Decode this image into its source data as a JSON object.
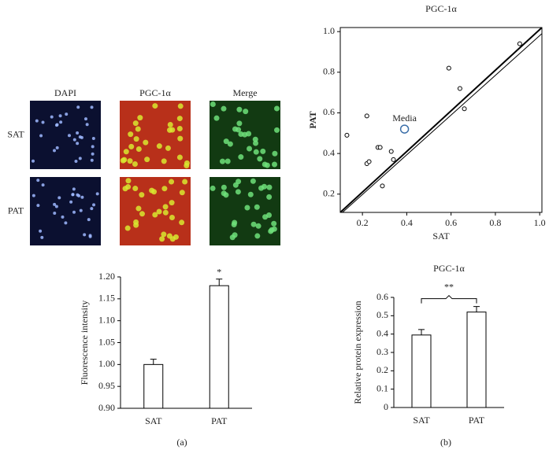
{
  "micrograph": {
    "columns": [
      "DAPI",
      "PGC-1α",
      "Merge"
    ],
    "rows": [
      "SAT",
      "PAT"
    ]
  },
  "panels": [
    "(a)",
    "(b)"
  ],
  "chart_data": [
    {
      "type": "bar",
      "y_label": "Fluorescence intensity",
      "categories": [
        "SAT",
        "PAT"
      ],
      "values": [
        1.0,
        1.18
      ],
      "errors": [
        0.012,
        0.015
      ],
      "annotations": [
        null,
        "*"
      ],
      "color": "#ffffff",
      "ylim": [
        0.9,
        1.2
      ],
      "yticks": [
        {
          "value": 0.9,
          "label": "0.90"
        },
        {
          "value": 0.95,
          "label": "0.95"
        },
        {
          "value": 1.0,
          "label": "1.00"
        },
        {
          "value": 1.05,
          "label": "1.05"
        },
        {
          "value": 1.1,
          "label": "1.10"
        },
        {
          "value": 1.15,
          "label": "1.15"
        },
        {
          "value": 1.2,
          "label": "1.20"
        }
      ]
    },
    {
      "type": "scatter",
      "title": "PGC-1α",
      "x_label": "SAT",
      "y_label": "PAT",
      "x": [
        0.13,
        0.22,
        0.22,
        0.23,
        0.27,
        0.28,
        0.33,
        0.34,
        0.29,
        0.59,
        0.64,
        0.66,
        0.91
      ],
      "y": [
        0.49,
        0.585,
        0.35,
        0.36,
        0.43,
        0.43,
        0.41,
        0.37,
        0.24,
        0.82,
        0.72,
        0.62,
        0.94
      ],
      "media": {
        "label": "Media",
        "x": 0.39,
        "y": 0.52
      },
      "lines": [
        {
          "x": [
            0.1,
            1.01
          ],
          "y": [
            0.11,
            1.02
          ],
          "width": 2
        },
        {
          "x": [
            0.11,
            1.01
          ],
          "y": [
            0.11,
            0.99
          ],
          "width": 1
        }
      ],
      "xlim": [
        0.1,
        1.01
      ],
      "ylim": [
        0.11,
        1.02
      ],
      "xticks": [
        0.2,
        0.4,
        0.6,
        0.8,
        {
          "value": 1.0,
          "label": "1.0"
        }
      ],
      "yticks": [
        0.2,
        0.4,
        0.6,
        0.8,
        {
          "value": 1.0,
          "label": "1.0"
        }
      ]
    },
    {
      "type": "bar",
      "title": "PGC-1α",
      "y_label": "Relative protein expression",
      "categories": [
        "SAT",
        "PAT"
      ],
      "values": [
        0.395,
        0.52
      ],
      "errors": [
        0.03,
        0.03
      ],
      "bracket": "**",
      "color": "#ffffff",
      "ylim": [
        0,
        0.6
      ],
      "yticks": [
        0,
        0.1,
        0.2,
        0.3,
        0.4,
        0.5,
        0.6
      ]
    }
  ]
}
